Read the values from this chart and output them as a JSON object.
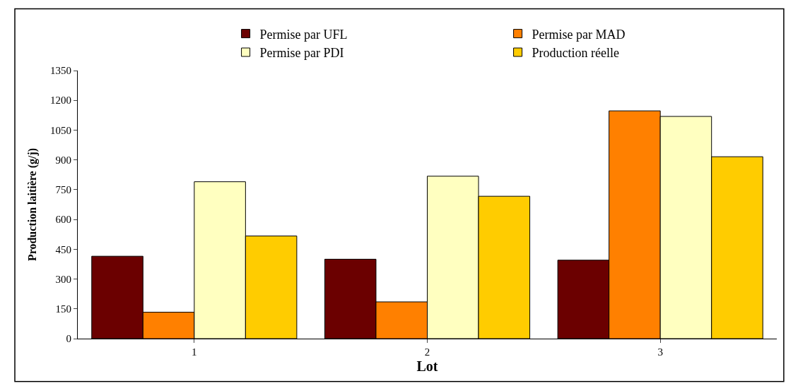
{
  "chart_data": {
    "type": "bar",
    "xlabel": "Lot",
    "ylabel": "Production laitière (g/j)",
    "categories": [
      "1",
      "2",
      "3"
    ],
    "series": [
      {
        "name": "Permise par UFL",
        "color": "#6b0000",
        "values": [
          415,
          400,
          395
        ]
      },
      {
        "name": "Permise par MAD",
        "color": "#ff8000",
        "values": [
          133,
          185,
          1147
        ]
      },
      {
        "name": "Permise par PDI",
        "color": "#ffffc0",
        "values": [
          790,
          818,
          1119
        ]
      },
      {
        "name": "Production réelle",
        "color": "#ffcc00",
        "values": [
          517,
          717,
          916
        ]
      }
    ],
    "ylim": [
      0,
      1350
    ],
    "yticks": [
      0,
      150,
      300,
      450,
      600,
      750,
      900,
      1050,
      1200,
      1350
    ],
    "legend": "top"
  }
}
